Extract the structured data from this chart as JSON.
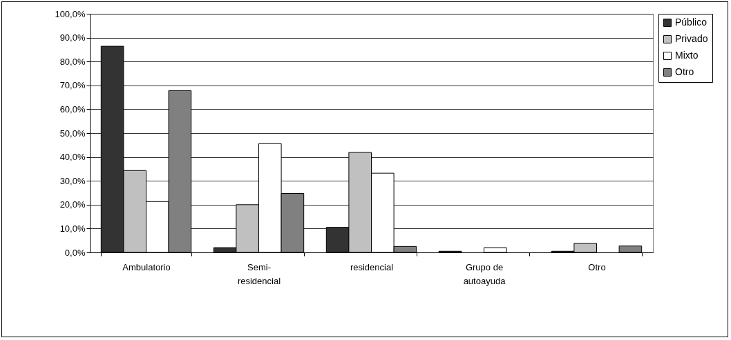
{
  "chart_data": {
    "type": "bar",
    "categories": [
      "Ambulatorio",
      "Semi-residencial",
      "residencial",
      "Grupo de autoayuda",
      "Otro"
    ],
    "series": [
      {
        "name": "Público",
        "color": "#333333",
        "values": [
          86.4,
          2.0,
          10.5,
          0.5,
          0.5
        ]
      },
      {
        "name": "Privado",
        "color": "#c0c0c0",
        "values": [
          34.3,
          20.0,
          41.9,
          null,
          3.8
        ]
      },
      {
        "name": "Mixto",
        "color": "#ffffff",
        "values": [
          21.3,
          45.6,
          33.2,
          2.0,
          null
        ]
      },
      {
        "name": "Otro",
        "color": "#808080",
        "values": [
          67.8,
          24.7,
          2.5,
          null,
          2.7
        ]
      }
    ],
    "ylim": [
      0,
      100
    ],
    "yticks": [
      {
        "value": 0,
        "label": "0,0%"
      },
      {
        "value": 10,
        "label": "10,0%"
      },
      {
        "value": 20,
        "label": "20,0%"
      },
      {
        "value": 30,
        "label": "30,0%"
      },
      {
        "value": 40,
        "label": "40,0%"
      },
      {
        "value": 50,
        "label": "50,0%"
      },
      {
        "value": 60,
        "label": "60,0%"
      },
      {
        "value": 70,
        "label": "70,0%"
      },
      {
        "value": 80,
        "label": "80,0%"
      },
      {
        "value": 90,
        "label": "90,0%"
      },
      {
        "value": 100,
        "label": "100,0%"
      }
    ],
    "grid": "y",
    "legend": "right"
  }
}
